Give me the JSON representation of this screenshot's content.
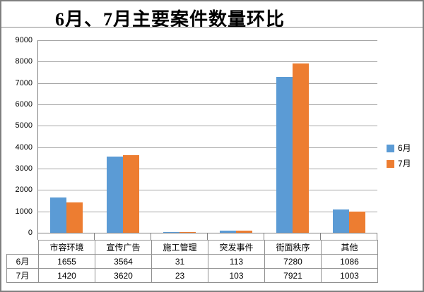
{
  "chart_data": {
    "type": "bar",
    "title": "6月、7月主要案件数量环比",
    "categories": [
      "市容环境",
      "宣传广告",
      "施工管理",
      "突发事件",
      "街面秩序",
      "其他"
    ],
    "series": [
      {
        "name": "6月",
        "color": "#5B9BD5",
        "values": [
          1655,
          3564,
          31,
          113,
          7280,
          1086
        ]
      },
      {
        "name": "7月",
        "color": "#ED7D31",
        "values": [
          1420,
          3620,
          23,
          103,
          7921,
          1003
        ]
      }
    ],
    "xlabel": "",
    "ylabel": "",
    "ylim": [
      0,
      9000
    ],
    "yticks": [
      0,
      1000,
      2000,
      3000,
      4000,
      5000,
      6000,
      7000,
      8000,
      9000
    ],
    "grid": true,
    "legend_position": "right",
    "shows_data_table": true
  },
  "colors": {
    "series_jun": "#5B9BD5",
    "series_jul": "#ED7D31",
    "gridline": "#A6A6A6",
    "axis": "#808080",
    "frame_border": "#7F7F7F",
    "table_border": "#919191",
    "title_text": "#000000"
  }
}
